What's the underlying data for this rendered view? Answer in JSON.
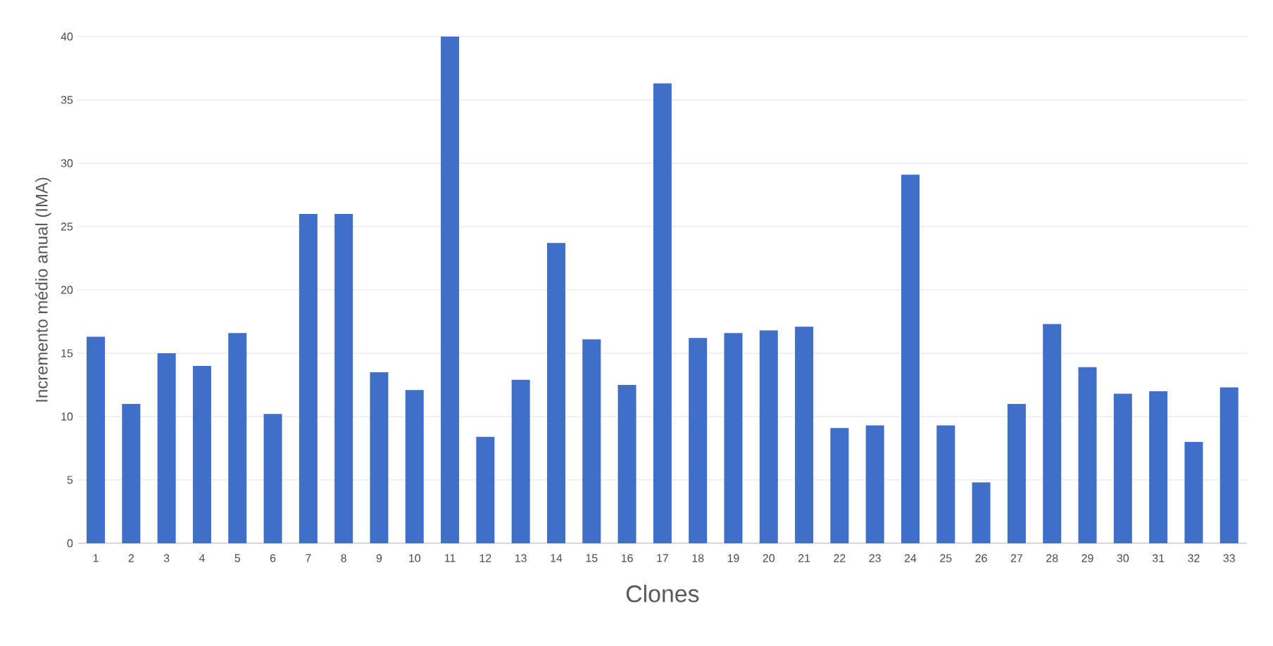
{
  "chart_data": {
    "type": "bar",
    "xlabel": "Clones",
    "ylabel": "Incremento médio anual (IMA)",
    "categories": [
      "1",
      "2",
      "3",
      "4",
      "5",
      "6",
      "7",
      "8",
      "9",
      "10",
      "11",
      "12",
      "13",
      "14",
      "15",
      "16",
      "17",
      "18",
      "19",
      "20",
      "21",
      "22",
      "23",
      "24",
      "25",
      "26",
      "27",
      "28",
      "29",
      "30",
      "31",
      "32",
      "33"
    ],
    "values": [
      16.3,
      11.0,
      15.0,
      14.0,
      16.6,
      10.2,
      26.0,
      26.0,
      13.5,
      12.1,
      40.0,
      8.4,
      12.9,
      23.7,
      16.1,
      12.5,
      36.3,
      16.2,
      16.6,
      16.8,
      17.1,
      9.1,
      9.3,
      29.1,
      9.3,
      4.8,
      11.0,
      17.3,
      13.9,
      11.8,
      12.0,
      8.0,
      12.3
    ],
    "color": "#3f6fc8",
    "ylim": [
      0,
      40
    ],
    "yticks": [
      0,
      5,
      10,
      15,
      20,
      25,
      30,
      35,
      40
    ],
    "grid": "y"
  }
}
